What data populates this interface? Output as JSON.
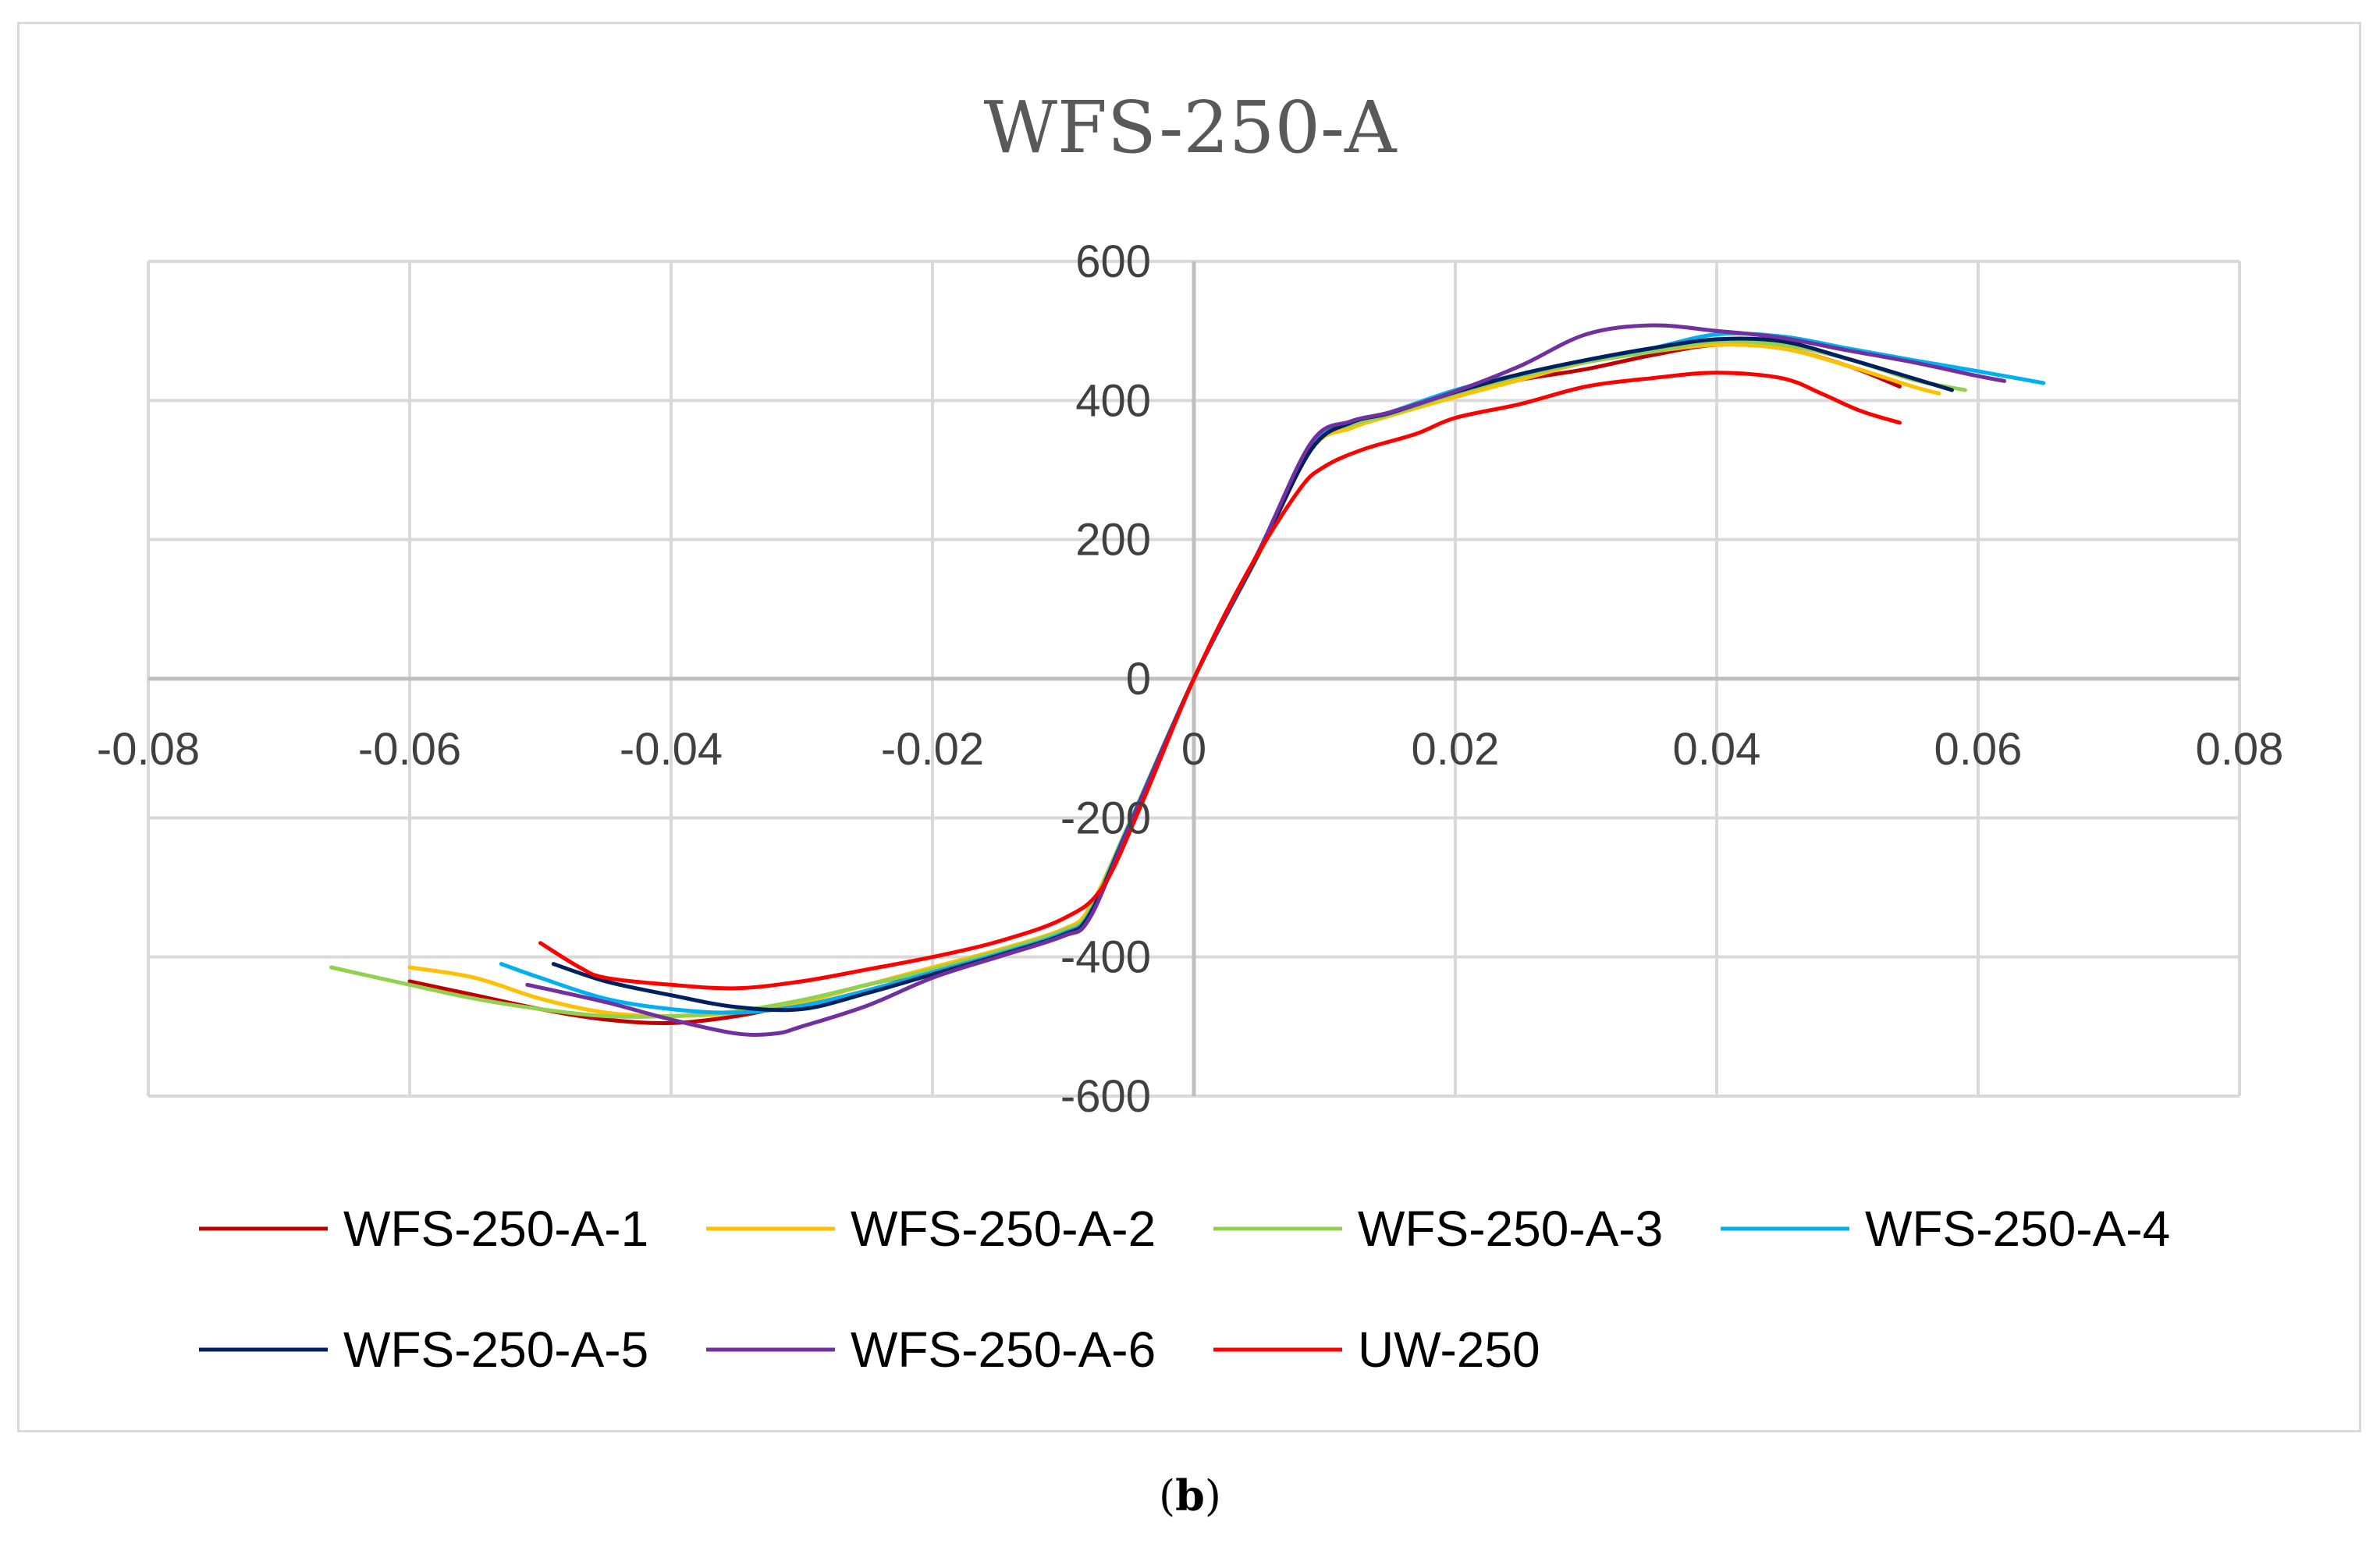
{
  "caption": {
    "open": "(",
    "label": "b",
    "close": ")"
  },
  "chart_data": {
    "type": "line",
    "title": "WFS-250-A",
    "xlabel": "",
    "ylabel": "",
    "xlim": [
      -0.08,
      0.08
    ],
    "ylim": [
      -600,
      600
    ],
    "xticks": [
      -0.08,
      -0.06,
      -0.04,
      -0.02,
      0,
      0.02,
      0.04,
      0.06,
      0.08
    ],
    "xtick_labels": [
      "-0.08",
      "-0.06",
      "-0.04",
      "-0.02",
      "0",
      "0.02",
      "0.04",
      "0.06",
      "0.08"
    ],
    "yticks": [
      600,
      400,
      200,
      0,
      -200,
      -400,
      -600
    ],
    "ytick_labels": [
      "600",
      "400",
      "200",
      "0",
      "-200",
      "-400",
      "-600"
    ],
    "grid": true,
    "legend_position": "bottom",
    "series": [
      {
        "name": "WFS-250-A-1",
        "color": "#c00000",
        "points": [
          [
            -0.06,
            -435
          ],
          [
            -0.055,
            -455
          ],
          [
            -0.05,
            -475
          ],
          [
            -0.045,
            -490
          ],
          [
            -0.04,
            -495
          ],
          [
            -0.035,
            -485
          ],
          [
            -0.03,
            -465
          ],
          [
            -0.025,
            -440
          ],
          [
            -0.02,
            -420
          ],
          [
            -0.015,
            -395
          ],
          [
            -0.01,
            -370
          ],
          [
            -0.008,
            -340
          ],
          [
            -0.005,
            -220
          ],
          [
            0,
            0
          ],
          [
            0.005,
            180
          ],
          [
            0.009,
            330
          ],
          [
            0.012,
            365
          ],
          [
            0.015,
            380
          ],
          [
            0.02,
            410
          ],
          [
            0.025,
            430
          ],
          [
            0.03,
            445
          ],
          [
            0.035,
            465
          ],
          [
            0.04,
            480
          ],
          [
            0.045,
            475
          ],
          [
            0.05,
            450
          ],
          [
            0.054,
            420
          ]
        ]
      },
      {
        "name": "WFS-250-A-2",
        "color": "#ffc000",
        "points": [
          [
            -0.06,
            -415
          ],
          [
            -0.055,
            -430
          ],
          [
            -0.05,
            -460
          ],
          [
            -0.045,
            -480
          ],
          [
            -0.04,
            -485
          ],
          [
            -0.035,
            -480
          ],
          [
            -0.03,
            -465
          ],
          [
            -0.025,
            -440
          ],
          [
            -0.02,
            -415
          ],
          [
            -0.015,
            -390
          ],
          [
            -0.01,
            -360
          ],
          [
            -0.008,
            -330
          ],
          [
            -0.005,
            -210
          ],
          [
            0,
            0
          ],
          [
            0.005,
            180
          ],
          [
            0.009,
            330
          ],
          [
            0.012,
            360
          ],
          [
            0.015,
            378
          ],
          [
            0.02,
            405
          ],
          [
            0.025,
            430
          ],
          [
            0.03,
            455
          ],
          [
            0.035,
            470
          ],
          [
            0.04,
            480
          ],
          [
            0.045,
            475
          ],
          [
            0.05,
            450
          ],
          [
            0.055,
            420
          ],
          [
            0.057,
            410
          ]
        ]
      },
      {
        "name": "WFS-250-A-3",
        "color": "#92d050",
        "points": [
          [
            -0.066,
            -415
          ],
          [
            -0.06,
            -440
          ],
          [
            -0.055,
            -460
          ],
          [
            -0.05,
            -475
          ],
          [
            -0.045,
            -485
          ],
          [
            -0.04,
            -485
          ],
          [
            -0.035,
            -478
          ],
          [
            -0.03,
            -462
          ],
          [
            -0.025,
            -440
          ],
          [
            -0.02,
            -418
          ],
          [
            -0.015,
            -392
          ],
          [
            -0.01,
            -362
          ],
          [
            -0.008,
            -335
          ],
          [
            -0.005,
            -210
          ],
          [
            0,
            0
          ],
          [
            0.005,
            180
          ],
          [
            0.009,
            335
          ],
          [
            0.012,
            365
          ],
          [
            0.015,
            380
          ],
          [
            0.02,
            410
          ],
          [
            0.025,
            435
          ],
          [
            0.03,
            455
          ],
          [
            0.035,
            470
          ],
          [
            0.04,
            485
          ],
          [
            0.045,
            480
          ],
          [
            0.05,
            460
          ],
          [
            0.055,
            430
          ],
          [
            0.059,
            415
          ]
        ]
      },
      {
        "name": "WFS-250-A-4",
        "color": "#00b0f0",
        "points": [
          [
            -0.053,
            -410
          ],
          [
            -0.05,
            -430
          ],
          [
            -0.045,
            -460
          ],
          [
            -0.04,
            -475
          ],
          [
            -0.035,
            -480
          ],
          [
            -0.03,
            -470
          ],
          [
            -0.025,
            -448
          ],
          [
            -0.02,
            -422
          ],
          [
            -0.015,
            -396
          ],
          [
            -0.01,
            -366
          ],
          [
            -0.008,
            -338
          ],
          [
            -0.005,
            -212
          ],
          [
            0,
            0
          ],
          [
            0.005,
            182
          ],
          [
            0.009,
            335
          ],
          [
            0.012,
            368
          ],
          [
            0.015,
            383
          ],
          [
            0.02,
            415
          ],
          [
            0.025,
            438
          ],
          [
            0.03,
            458
          ],
          [
            0.035,
            475
          ],
          [
            0.04,
            495
          ],
          [
            0.045,
            492
          ],
          [
            0.05,
            475
          ],
          [
            0.055,
            458
          ],
          [
            0.06,
            442
          ],
          [
            0.065,
            425
          ]
        ]
      },
      {
        "name": "WFS-250-A-5",
        "color": "#002060",
        "points": [
          [
            -0.049,
            -410
          ],
          [
            -0.045,
            -435
          ],
          [
            -0.04,
            -455
          ],
          [
            -0.035,
            -472
          ],
          [
            -0.03,
            -475
          ],
          [
            -0.025,
            -452
          ],
          [
            -0.02,
            -425
          ],
          [
            -0.015,
            -398
          ],
          [
            -0.01,
            -368
          ],
          [
            -0.008,
            -340
          ],
          [
            -0.005,
            -214
          ],
          [
            0,
            0
          ],
          [
            0.005,
            182
          ],
          [
            0.009,
            330
          ],
          [
            0.012,
            368
          ],
          [
            0.015,
            382
          ],
          [
            0.02,
            412
          ],
          [
            0.025,
            438
          ],
          [
            0.03,
            458
          ],
          [
            0.035,
            475
          ],
          [
            0.04,
            488
          ],
          [
            0.045,
            485
          ],
          [
            0.05,
            460
          ],
          [
            0.055,
            432
          ],
          [
            0.058,
            415
          ]
        ]
      },
      {
        "name": "WFS-250-A-6",
        "color": "#7030a0",
        "points": [
          [
            -0.051,
            -440
          ],
          [
            -0.045,
            -465
          ],
          [
            -0.04,
            -490
          ],
          [
            -0.035,
            -510
          ],
          [
            -0.032,
            -510
          ],
          [
            -0.03,
            -500
          ],
          [
            -0.025,
            -470
          ],
          [
            -0.02,
            -430
          ],
          [
            -0.015,
            -400
          ],
          [
            -0.01,
            -370
          ],
          [
            -0.008,
            -345
          ],
          [
            -0.005,
            -215
          ],
          [
            0,
            0
          ],
          [
            0.005,
            185
          ],
          [
            0.009,
            340
          ],
          [
            0.012,
            370
          ],
          [
            0.015,
            383
          ],
          [
            0.02,
            413
          ],
          [
            0.025,
            450
          ],
          [
            0.03,
            495
          ],
          [
            0.035,
            508
          ],
          [
            0.04,
            500
          ],
          [
            0.045,
            490
          ],
          [
            0.05,
            472
          ],
          [
            0.055,
            455
          ],
          [
            0.06,
            435
          ],
          [
            0.062,
            428
          ]
        ]
      },
      {
        "name": "UW-250",
        "color": "#ff0000",
        "points": [
          [
            -0.05,
            -380
          ],
          [
            -0.047,
            -415
          ],
          [
            -0.045,
            -430
          ],
          [
            -0.04,
            -440
          ],
          [
            -0.035,
            -445
          ],
          [
            -0.03,
            -435
          ],
          [
            -0.025,
            -418
          ],
          [
            -0.02,
            -400
          ],
          [
            -0.015,
            -378
          ],
          [
            -0.01,
            -345
          ],
          [
            -0.007,
            -300
          ],
          [
            -0.004,
            -180
          ],
          [
            0,
            0
          ],
          [
            0.004,
            150
          ],
          [
            0.008,
            270
          ],
          [
            0.01,
            305
          ],
          [
            0.013,
            330
          ],
          [
            0.017,
            352
          ],
          [
            0.02,
            375
          ],
          [
            0.025,
            395
          ],
          [
            0.03,
            420
          ],
          [
            0.035,
            432
          ],
          [
            0.04,
            440
          ],
          [
            0.045,
            432
          ],
          [
            0.048,
            410
          ],
          [
            0.051,
            385
          ],
          [
            0.054,
            368
          ]
        ]
      }
    ]
  }
}
